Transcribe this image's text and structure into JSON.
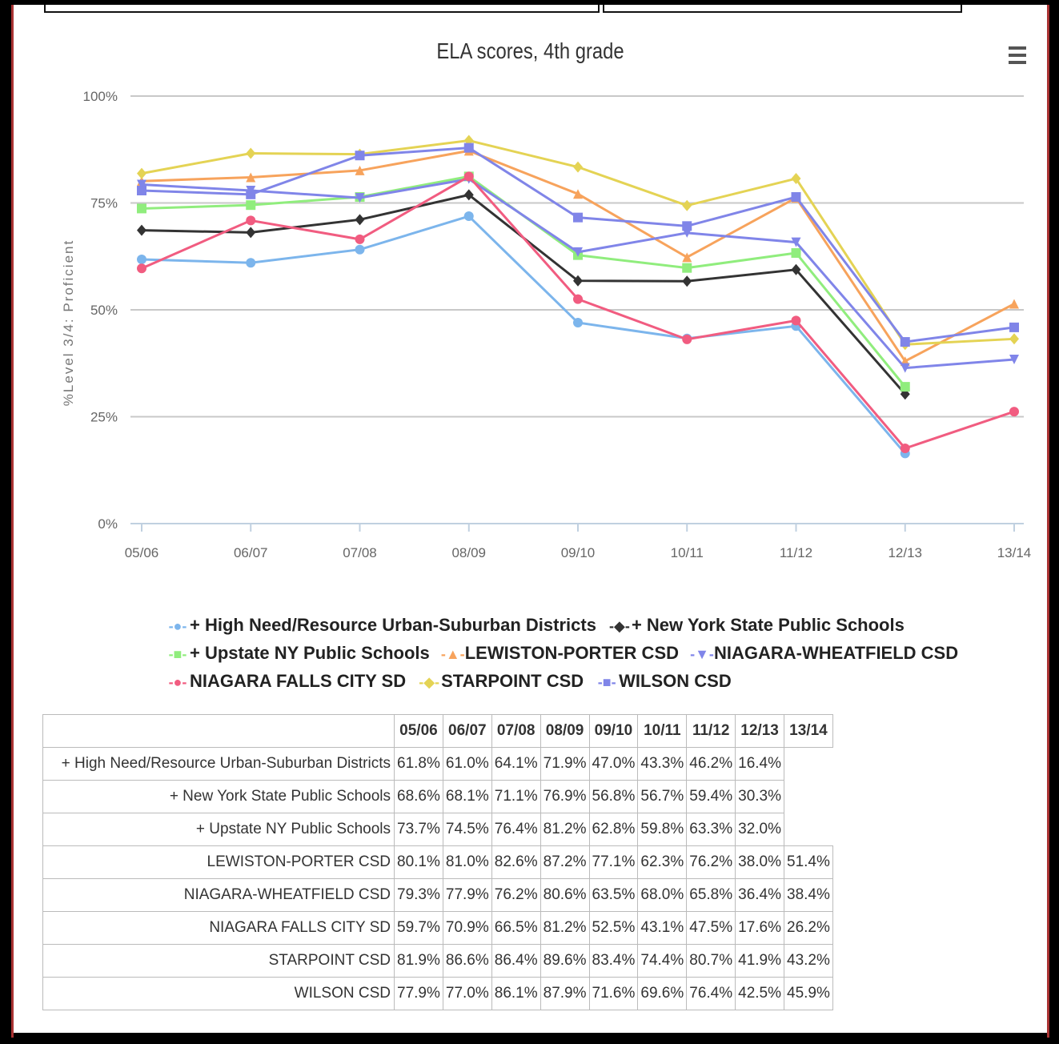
{
  "title": "ELA scores, 4th grade",
  "menu_icon": "hamburger-menu-icon",
  "chart_data": {
    "type": "line",
    "title": "ELA scores, 4th grade",
    "ylabel": "%Level 3/4: Proficient",
    "xlabel": "",
    "ylim": [
      0,
      100
    ],
    "y_ticks": [
      "0%",
      "25%",
      "50%",
      "75%",
      "100%"
    ],
    "y_tick_values": [
      0,
      25,
      50,
      75,
      100
    ],
    "categories": [
      "05/06",
      "06/07",
      "07/08",
      "08/09",
      "09/10",
      "10/11",
      "11/12",
      "12/13",
      "13/14"
    ],
    "grid": true,
    "legend_position": "bottom",
    "series": [
      {
        "name": "+ High Need/Resource Urban-Suburban Districts",
        "color": "#7cb5ec",
        "marker": "circle",
        "values": [
          61.8,
          61.0,
          64.1,
          71.9,
          47.0,
          43.3,
          46.2,
          16.4,
          null
        ]
      },
      {
        "name": "+ New York State Public Schools",
        "color": "#333333",
        "marker": "diamond",
        "values": [
          68.6,
          68.1,
          71.1,
          76.9,
          56.8,
          56.7,
          59.4,
          30.3,
          null
        ]
      },
      {
        "name": "+ Upstate NY Public Schools",
        "color": "#90ed7d",
        "marker": "square",
        "values": [
          73.7,
          74.5,
          76.4,
          81.2,
          62.8,
          59.8,
          63.3,
          32.0,
          null
        ]
      },
      {
        "name": "LEWISTON-PORTER CSD",
        "color": "#f7a35c",
        "marker": "triangle",
        "values": [
          80.1,
          81.0,
          82.6,
          87.2,
          77.1,
          62.3,
          76.2,
          38.0,
          51.4
        ]
      },
      {
        "name": "NIAGARA-WHEATFIELD CSD",
        "color": "#8085e9",
        "marker": "triangle-down",
        "values": [
          79.3,
          77.9,
          76.2,
          80.6,
          63.5,
          68.0,
          65.8,
          36.4,
          38.4
        ]
      },
      {
        "name": "NIAGARA FALLS CITY SD",
        "color": "#f15c80",
        "marker": "circle",
        "values": [
          59.7,
          70.9,
          66.5,
          81.2,
          52.5,
          43.1,
          47.5,
          17.6,
          26.2
        ]
      },
      {
        "name": "STARPOINT CSD",
        "color": "#e4d354",
        "marker": "diamond",
        "values": [
          81.9,
          86.6,
          86.4,
          89.6,
          83.4,
          74.4,
          80.7,
          41.9,
          43.2
        ]
      },
      {
        "name": "WILSON CSD",
        "color": "#8085e8",
        "marker": "square",
        "values": [
          77.9,
          77.0,
          86.1,
          87.9,
          71.6,
          69.6,
          76.4,
          42.5,
          45.9
        ]
      }
    ]
  },
  "table": {
    "headers": [
      "05/06",
      "06/07",
      "07/08",
      "08/09",
      "09/10",
      "10/11",
      "11/12",
      "12/13",
      "13/14"
    ],
    "rows": [
      {
        "label": "+ High Need/Resource Urban-Suburban Districts",
        "cells": [
          "61.8%",
          "61.0%",
          "64.1%",
          "71.9%",
          "47.0%",
          "43.3%",
          "46.2%",
          "16.4%",
          ""
        ]
      },
      {
        "label": "+ New York State Public Schools",
        "cells": [
          "68.6%",
          "68.1%",
          "71.1%",
          "76.9%",
          "56.8%",
          "56.7%",
          "59.4%",
          "30.3%",
          ""
        ]
      },
      {
        "label": "+ Upstate NY Public Schools",
        "cells": [
          "73.7%",
          "74.5%",
          "76.4%",
          "81.2%",
          "62.8%",
          "59.8%",
          "63.3%",
          "32.0%",
          ""
        ]
      },
      {
        "label": "LEWISTON-PORTER CSD",
        "cells": [
          "80.1%",
          "81.0%",
          "82.6%",
          "87.2%",
          "77.1%",
          "62.3%",
          "76.2%",
          "38.0%",
          "51.4%"
        ]
      },
      {
        "label": "NIAGARA-WHEATFIELD CSD",
        "cells": [
          "79.3%",
          "77.9%",
          "76.2%",
          "80.6%",
          "63.5%",
          "68.0%",
          "65.8%",
          "36.4%",
          "38.4%"
        ]
      },
      {
        "label": "NIAGARA FALLS CITY SD",
        "cells": [
          "59.7%",
          "70.9%",
          "66.5%",
          "81.2%",
          "52.5%",
          "43.1%",
          "47.5%",
          "17.6%",
          "26.2%"
        ]
      },
      {
        "label": "STARPOINT CSD",
        "cells": [
          "81.9%",
          "86.6%",
          "86.4%",
          "89.6%",
          "83.4%",
          "74.4%",
          "80.7%",
          "41.9%",
          "43.2%"
        ]
      },
      {
        "label": "WILSON CSD",
        "cells": [
          "77.9%",
          "77.0%",
          "86.1%",
          "87.9%",
          "71.6%",
          "69.6%",
          "76.4%",
          "42.5%",
          "45.9%"
        ]
      }
    ]
  }
}
